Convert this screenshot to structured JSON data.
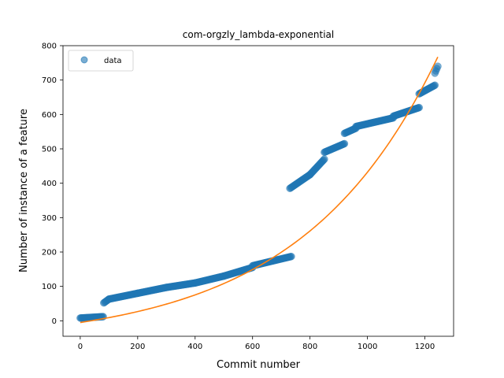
{
  "chart_data": {
    "type": "scatter",
    "title": "com-orgzly_lambda-exponential",
    "xlabel": "Commit number",
    "ylabel": "Number of instance of a feature",
    "xlim": [
      -60,
      1300
    ],
    "ylim": [
      -45,
      800
    ],
    "x_ticks": [
      0,
      200,
      400,
      600,
      800,
      1000,
      1200
    ],
    "y_ticks": [
      0,
      100,
      200,
      300,
      400,
      500,
      600,
      700,
      800
    ],
    "grid": false,
    "legend": {
      "placement": "top-left",
      "entries": [
        "data"
      ]
    },
    "series": [
      {
        "name": "data",
        "kind": "scatter",
        "color": "#1f77b4",
        "segments": [
          {
            "x_start": 0,
            "x_end": 80,
            "y_start": 8,
            "y_end": 12
          },
          {
            "x_start": 82,
            "x_end": 100,
            "y_start": 52,
            "y_end": 63
          },
          {
            "x_start": 100,
            "x_end": 200,
            "y_start": 63,
            "y_end": 80
          },
          {
            "x_start": 200,
            "x_end": 300,
            "y_start": 80,
            "y_end": 97
          },
          {
            "x_start": 300,
            "x_end": 400,
            "y_start": 97,
            "y_end": 110
          },
          {
            "x_start": 400,
            "x_end": 500,
            "y_start": 110,
            "y_end": 130
          },
          {
            "x_start": 500,
            "x_end": 600,
            "y_start": 130,
            "y_end": 155
          },
          {
            "x_start": 600,
            "x_end": 735,
            "y_start": 160,
            "y_end": 187
          },
          {
            "x_start": 730,
            "x_end": 800,
            "y_start": 385,
            "y_end": 425
          },
          {
            "x_start": 800,
            "x_end": 850,
            "y_start": 425,
            "y_end": 470
          },
          {
            "x_start": 850,
            "x_end": 920,
            "y_start": 490,
            "y_end": 515
          },
          {
            "x_start": 920,
            "x_end": 960,
            "y_start": 545,
            "y_end": 560
          },
          {
            "x_start": 960,
            "x_end": 1090,
            "y_start": 565,
            "y_end": 590
          },
          {
            "x_start": 1090,
            "x_end": 1180,
            "y_start": 595,
            "y_end": 620
          },
          {
            "x_start": 1180,
            "x_end": 1235,
            "y_start": 660,
            "y_end": 685
          },
          {
            "x_start": 1235,
            "x_end": 1245,
            "y_start": 720,
            "y_end": 740
          }
        ]
      },
      {
        "name": "",
        "kind": "line",
        "color": "#ff7f0e",
        "model": "exponential",
        "fit_params": {
          "a": 61,
          "b": 0.0021,
          "c": -66
        },
        "x_range": [
          0,
          1245
        ]
      }
    ]
  },
  "colors": {
    "scatter": "#1f77b4",
    "fit_line": "#ff7f0e",
    "axes": "#000000",
    "background": "#ffffff"
  }
}
